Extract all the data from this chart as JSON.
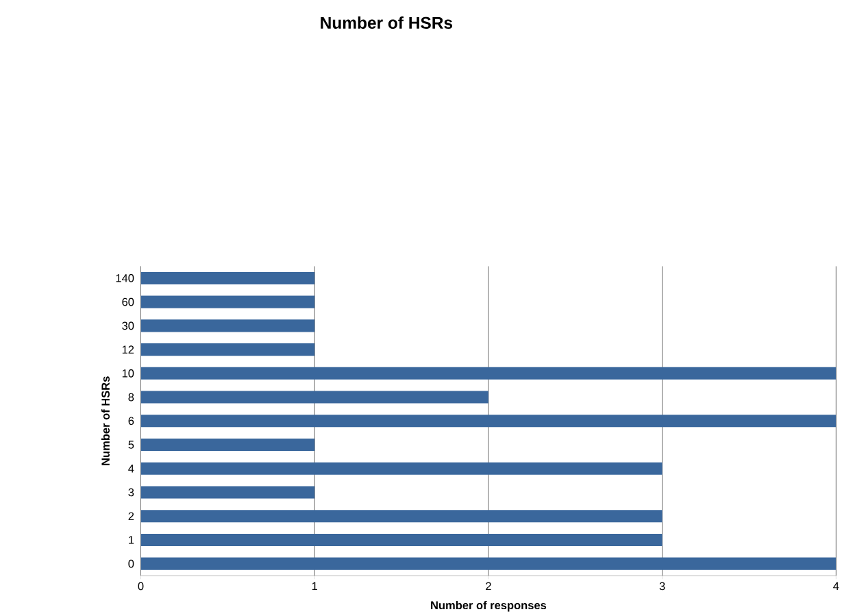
{
  "chart_data": {
    "type": "bar",
    "orientation": "horizontal",
    "title": "Number of HSRs",
    "xlabel": "Number of responses",
    "ylabel": "Number of HSRs",
    "categories": [
      "140",
      "60",
      "30",
      "12",
      "10",
      "8",
      "6",
      "5",
      "4",
      "3",
      "2",
      "1",
      "0"
    ],
    "values": [
      1,
      1,
      1,
      1,
      4,
      2,
      4,
      1,
      3,
      1,
      3,
      3,
      4
    ],
    "color": "#3a679c",
    "xlim": [
      0,
      4
    ],
    "xticks": [
      0,
      1,
      2,
      3,
      4
    ],
    "grid": "x"
  }
}
